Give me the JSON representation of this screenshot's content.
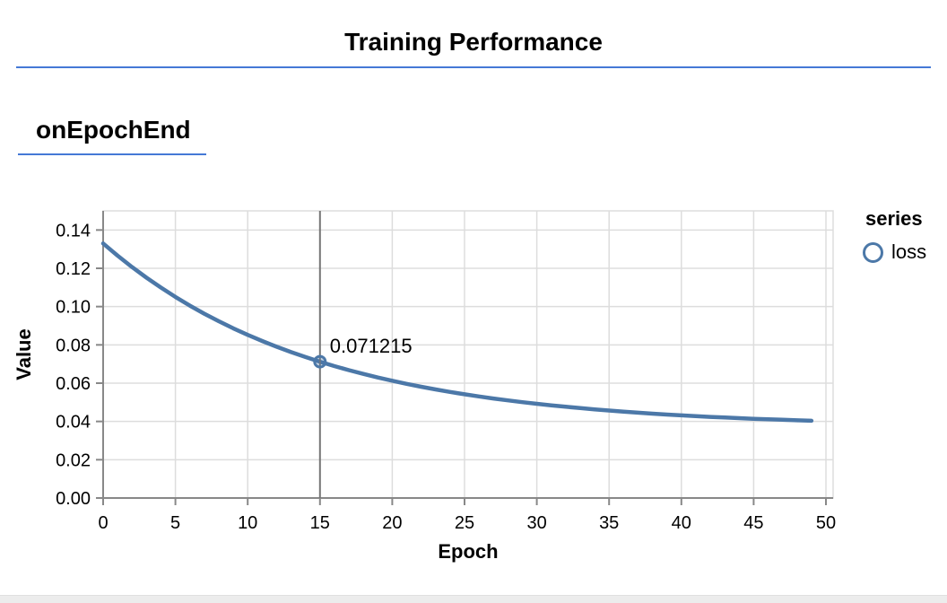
{
  "page": {
    "title": "Training Performance",
    "section_heading": "onEpochEnd",
    "accent_color": "#4579d6",
    "bottom_strip_color": "#ececec"
  },
  "chart_data": {
    "type": "line",
    "title": "Training Performance",
    "subtitle": "onEpochEnd",
    "xlabel": "Epoch",
    "ylabel": "Value",
    "xlim": [
      0,
      50.6
    ],
    "ylim": [
      0,
      0.15
    ],
    "x_ticks": [
      0,
      5,
      10,
      15,
      20,
      25,
      30,
      35,
      40,
      45,
      50
    ],
    "y_ticks": [
      "0.00",
      "0.02",
      "0.04",
      "0.06",
      "0.08",
      "0.10",
      "0.12",
      "0.14"
    ],
    "grid": true,
    "legend_position": "right",
    "legend_title": "series",
    "colors": {
      "grid": "#dddddd",
      "axis": "#888888"
    },
    "series": [
      {
        "name": "loss",
        "color": "#4c78a8",
        "x": [
          0,
          1,
          2,
          3,
          4,
          5,
          6,
          7,
          8,
          9,
          10,
          11,
          12,
          13,
          14,
          15,
          16,
          17,
          18,
          19,
          20,
          21,
          22,
          23,
          24,
          25,
          26,
          27,
          28,
          29,
          30,
          31,
          32,
          33,
          34,
          35,
          36,
          37,
          38,
          39,
          40,
          41,
          42,
          43,
          44,
          45,
          46,
          47,
          48,
          49
        ],
        "values": [
          0.133,
          0.126619,
          0.120663,
          0.115096,
          0.109899,
          0.105051,
          0.100504,
          0.09628,
          0.092337,
          0.088657,
          0.085221,
          0.082015,
          0.079022,
          0.076229,
          0.073622,
          0.071215,
          0.068917,
          0.066797,
          0.064818,
          0.062972,
          0.061248,
          0.059639,
          0.058137,
          0.056735,
          0.055427,
          0.054206,
          0.053066,
          0.052003,
          0.05101,
          0.050079,
          0.049214,
          0.048407,
          0.047653,
          0.04695,
          0.046294,
          0.045682,
          0.04511,
          0.044576,
          0.044078,
          0.043613,
          0.043179,
          0.042774,
          0.042396,
          0.042043,
          0.041714,
          0.041407,
          0.04112,
          0.040852,
          0.040602,
          0.040369
        ]
      }
    ],
    "highlight": {
      "x": 15,
      "y": 0.071215,
      "label": "0.071215",
      "rule_color": "#767676"
    }
  }
}
